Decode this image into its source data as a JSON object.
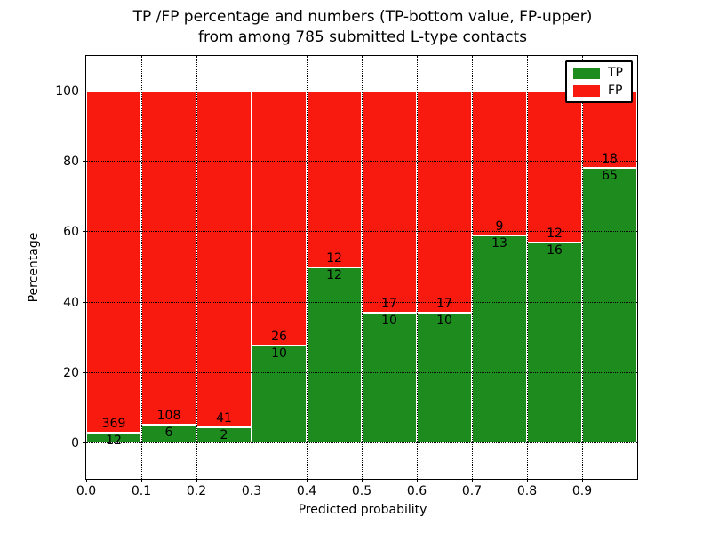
{
  "chart_data": {
    "type": "bar",
    "stacked": true,
    "title_line1": "TP /FP percentage and numbers (TP-bottom value, FP-upper)",
    "title_line2": "from among 785 submitted L-type contacts",
    "xlabel": "Predicted probability",
    "ylabel": "Percentage",
    "xlim": [
      0.0,
      1.0
    ],
    "ylim": [
      -10,
      110
    ],
    "x_ticks": [
      "0.0",
      "0.1",
      "0.2",
      "0.3",
      "0.4",
      "0.5",
      "0.6",
      "0.7",
      "0.8",
      "0.9"
    ],
    "y_ticks": [
      "0",
      "20",
      "40",
      "60",
      "80",
      "100"
    ],
    "grid": true,
    "grid_style": "dotted",
    "legend_position": "upper right",
    "colors": {
      "tp": "#1e8b1e",
      "fp": "#f8190f",
      "grid": "#000000",
      "background": "#ffffff"
    },
    "series": [
      {
        "name": "TP",
        "color": "#1e8b1e",
        "counts": [
          12,
          6,
          2,
          10,
          12,
          10,
          10,
          13,
          16,
          65
        ]
      },
      {
        "name": "FP",
        "color": "#f8190f",
        "counts": [
          369,
          108,
          41,
          26,
          12,
          17,
          17,
          9,
          12,
          18
        ]
      }
    ],
    "bins": [
      {
        "range": [
          0.0,
          0.1
        ],
        "tp": 12,
        "fp": 369,
        "tp_pct": 3.15,
        "fp_pct": 96.85
      },
      {
        "range": [
          0.1,
          0.2
        ],
        "tp": 6,
        "fp": 108,
        "tp_pct": 5.26,
        "fp_pct": 94.74
      },
      {
        "range": [
          0.2,
          0.3
        ],
        "tp": 2,
        "fp": 41,
        "tp_pct": 4.65,
        "fp_pct": 95.35
      },
      {
        "range": [
          0.3,
          0.4
        ],
        "tp": 10,
        "fp": 26,
        "tp_pct": 27.78,
        "fp_pct": 72.22
      },
      {
        "range": [
          0.4,
          0.5
        ],
        "tp": 12,
        "fp": 12,
        "tp_pct": 50.0,
        "fp_pct": 50.0
      },
      {
        "range": [
          0.5,
          0.6
        ],
        "tp": 10,
        "fp": 17,
        "tp_pct": 37.04,
        "fp_pct": 62.96
      },
      {
        "range": [
          0.6,
          0.7
        ],
        "tp": 10,
        "fp": 17,
        "tp_pct": 37.04,
        "fp_pct": 62.96
      },
      {
        "range": [
          0.7,
          0.8
        ],
        "tp": 13,
        "fp": 9,
        "tp_pct": 59.09,
        "fp_pct": 40.91
      },
      {
        "range": [
          0.8,
          0.9
        ],
        "tp": 16,
        "fp": 12,
        "tp_pct": 57.14,
        "fp_pct": 42.86
      },
      {
        "range": [
          0.9,
          1.0
        ],
        "tp": 65,
        "fp": 18,
        "tp_pct": 78.31,
        "fp_pct": 21.69
      }
    ]
  }
}
